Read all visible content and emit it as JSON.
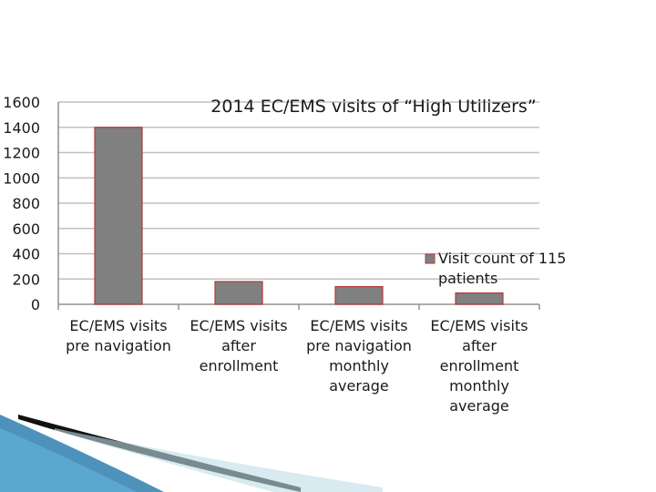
{
  "chart_data": {
    "type": "bar",
    "title": "2014 EC/EMS visits of “High Utilizers”",
    "categories": [
      [
        "EC/EMS visits",
        "pre navigation"
      ],
      [
        "EC/EMS visits",
        "after",
        "enrollment"
      ],
      [
        "EC/EMS visits",
        "pre navigation",
        "monthly",
        "average"
      ],
      [
        "EC/EMS visits",
        "after",
        "enrollment",
        "monthly",
        "average"
      ]
    ],
    "series": [
      {
        "name": "Visit count of 115 patients",
        "values": [
          1400,
          180,
          140,
          90
        ]
      }
    ],
    "yticks": [
      "0",
      "200",
      "400",
      "600",
      "800",
      "1000",
      "1200",
      "1400",
      "1600"
    ],
    "ylim": [
      0,
      1600
    ],
    "grid": true,
    "legend_position": "right",
    "colors": {
      "bar_fill": "#808080",
      "bar_stroke": "#b03a3a",
      "grid": "#c0c0c0",
      "axis": "#909090"
    }
  }
}
